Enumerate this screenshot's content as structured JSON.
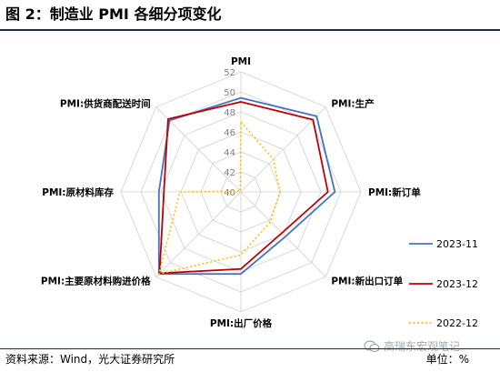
{
  "title": "图 2：制造业 PMI 各细分项变化",
  "source": "资料来源：Wind，光大证券研究所",
  "unit": "单位：%",
  "watermark": "高瑞东宏观笔记",
  "chart_data": {
    "type": "radar",
    "title": "图 2：制造业 PMI 各细分项变化",
    "axes": [
      "PMI",
      "PMI:生产",
      "PMI:新订单",
      "PMI:新出口订单",
      "PMI:出厂价格",
      "PMI:主要原材料购进价格",
      "PMI:原材料库存",
      "PMI:供货商配送时间"
    ],
    "rlim": [
      40,
      52
    ],
    "ticks": [
      40,
      42,
      44,
      46,
      48,
      50,
      52
    ],
    "grid": true,
    "legend_position": "right",
    "series": [
      {
        "name": "2023-11",
        "color": "#4472C4",
        "dash": "solid",
        "values": [
          49.4,
          50.7,
          49.4,
          46.3,
          48.2,
          51.6,
          48.2,
          50.1
        ]
      },
      {
        "name": "2023-12",
        "color": "#C00000",
        "dash": "solid",
        "values": [
          49.0,
          50.2,
          48.7,
          45.8,
          47.7,
          51.5,
          47.7,
          50.3
        ]
      },
      {
        "name": "2022-12",
        "color": "#FFC000",
        "dash": "dotted",
        "values": [
          47.0,
          44.6,
          43.9,
          44.2,
          46.3,
          51.6,
          46.1,
          40.1
        ]
      }
    ]
  }
}
